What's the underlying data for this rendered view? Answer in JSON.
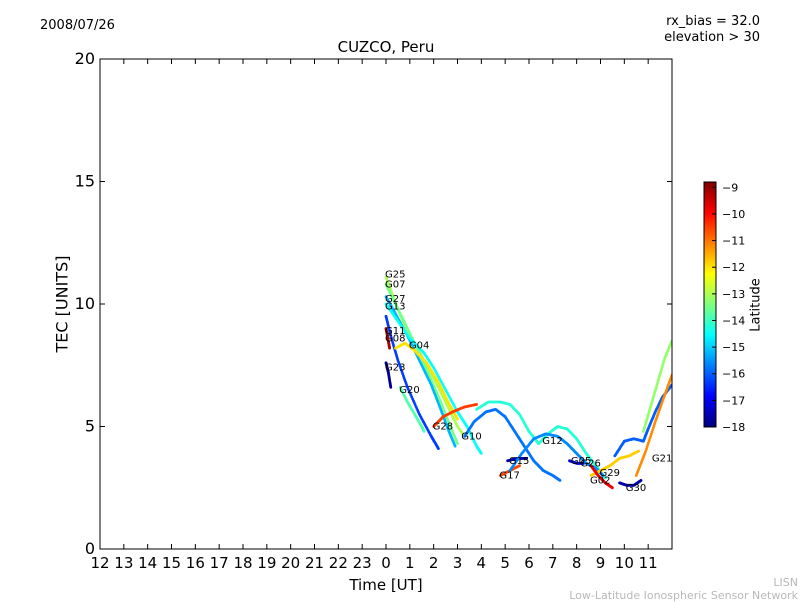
{
  "header": {
    "date": "2008/07/26",
    "rx_bias": "rx_bias = 32.0",
    "elevation": "elevation > 30"
  },
  "footer": {
    "line1": "LISN",
    "line2": "Low-Latitude Ionospheric Sensor Network"
  },
  "chart_data": {
    "type": "scatter",
    "title": "CUZCO, Peru",
    "xlabel": "Time [UT]",
    "ylabel": "TEC [UNITS]",
    "ylim": [
      0,
      20
    ],
    "xlim": [
      -12,
      12
    ],
    "x_tick_labels": [
      "12",
      "13",
      "14",
      "15",
      "16",
      "17",
      "18",
      "19",
      "20",
      "21",
      "22",
      "23",
      "0",
      "1",
      "2",
      "3",
      "4",
      "5",
      "6",
      "7",
      "8",
      "9",
      "10",
      "11"
    ],
    "y_ticks": [
      0,
      5,
      10,
      15,
      20
    ],
    "colorbar": {
      "label": "Latitude",
      "min": -18,
      "max": -8.8,
      "ticks": [
        -9,
        -10,
        -11,
        -12,
        -13,
        -14,
        -15,
        -16,
        -17,
        -18
      ],
      "colors": [
        "#00007f",
        "#0000ff",
        "#007fff",
        "#00ffff",
        "#7fff7f",
        "#ffff00",
        "#ff7f00",
        "#ff0000",
        "#7f0000"
      ]
    },
    "series": [
      {
        "name": "G25",
        "label_x": 0.0,
        "label_y": 11.2,
        "lat": -13.0,
        "points": [
          [
            0.0,
            11.1
          ],
          [
            0.3,
            10.3
          ],
          [
            0.7,
            9.3
          ],
          [
            1.2,
            8.4
          ],
          [
            1.7,
            7.5
          ],
          [
            2.2,
            6.6
          ],
          [
            2.6,
            5.8
          ],
          [
            3.0,
            5.0
          ],
          [
            3.3,
            4.6
          ]
        ]
      },
      {
        "name": "G07",
        "label_x": 0.0,
        "label_y": 10.8,
        "lat": -13.5,
        "points": [
          [
            0.0,
            10.8
          ],
          [
            0.4,
            10.0
          ],
          [
            0.8,
            9.2
          ],
          [
            1.3,
            8.2
          ],
          [
            1.8,
            7.1
          ],
          [
            2.3,
            6.0
          ],
          [
            2.7,
            5.0
          ],
          [
            3.0,
            4.3
          ]
        ]
      },
      {
        "name": "G27",
        "label_x": 0.0,
        "label_y": 10.2,
        "lat": -15.2,
        "points": [
          [
            0.0,
            10.3
          ],
          [
            0.4,
            9.6
          ],
          [
            0.9,
            8.7
          ],
          [
            1.4,
            7.7
          ],
          [
            1.9,
            6.7
          ],
          [
            2.3,
            5.7
          ],
          [
            2.6,
            4.9
          ],
          [
            2.9,
            4.2
          ]
        ]
      },
      {
        "name": "G13",
        "label_x": 0.0,
        "label_y": 9.9,
        "lat": -14.5,
        "points": [
          [
            0.0,
            10.0
          ],
          [
            0.5,
            9.3
          ],
          [
            1.0,
            8.6
          ],
          [
            1.6,
            8.0
          ],
          [
            2.0,
            7.4
          ],
          [
            2.5,
            6.5
          ],
          [
            3.0,
            5.6
          ],
          [
            3.4,
            5.0
          ],
          [
            3.8,
            4.2
          ],
          [
            4.0,
            3.9
          ]
        ]
      },
      {
        "name": "G11",
        "label_x": 0.0,
        "label_y": 8.9,
        "lat": -16.3,
        "points": [
          [
            0.0,
            9.5
          ],
          [
            0.2,
            8.7
          ],
          [
            0.5,
            7.7
          ],
          [
            0.9,
            6.6
          ],
          [
            1.4,
            5.5
          ],
          [
            1.9,
            4.6
          ],
          [
            2.2,
            4.1
          ]
        ]
      },
      {
        "name": "G08",
        "label_x": 0.0,
        "label_y": 8.6,
        "lat": -9.2,
        "points": [
          [
            0.0,
            9.0
          ],
          [
            0.08,
            8.6
          ],
          [
            0.15,
            8.2
          ]
        ]
      },
      {
        "name": "G04",
        "label_x": 1.0,
        "label_y": 8.3,
        "lat": -12.0,
        "points": [
          [
            0.4,
            8.2
          ],
          [
            0.8,
            8.4
          ],
          [
            1.2,
            8.1
          ],
          [
            1.7,
            7.6
          ],
          [
            2.2,
            6.8
          ],
          [
            2.6,
            6.0
          ],
          [
            3.0,
            5.3
          ]
        ]
      },
      {
        "name": "G23",
        "label_x": 0.0,
        "label_y": 7.4,
        "lat": -17.8,
        "points": [
          [
            0.0,
            7.6
          ],
          [
            0.1,
            7.2
          ],
          [
            0.2,
            6.6
          ]
        ]
      },
      {
        "name": "G20",
        "label_x": 0.6,
        "label_y": 6.5,
        "lat": -13.8,
        "points": [
          [
            0.6,
            6.6
          ],
          [
            0.9,
            6.0
          ],
          [
            1.2,
            5.5
          ],
          [
            1.5,
            5.0
          ],
          [
            1.6,
            4.8
          ]
        ]
      },
      {
        "name": "G28",
        "label_x": 2.0,
        "label_y": 5.0,
        "lat": -10.5,
        "points": [
          [
            2.0,
            5.0
          ],
          [
            2.4,
            5.4
          ],
          [
            2.8,
            5.6
          ],
          [
            3.3,
            5.8
          ],
          [
            3.8,
            5.9
          ]
        ]
      },
      {
        "name": "G10",
        "label_x": 3.2,
        "label_y": 4.6,
        "lat": -15.8,
        "points": [
          [
            3.3,
            4.6
          ],
          [
            3.7,
            5.2
          ],
          [
            4.2,
            5.6
          ],
          [
            4.6,
            5.7
          ],
          [
            5.0,
            5.4
          ],
          [
            5.4,
            4.8
          ],
          [
            5.8,
            4.2
          ],
          [
            6.2,
            3.6
          ],
          [
            6.6,
            3.2
          ],
          [
            7.0,
            3.0
          ],
          [
            7.3,
            2.8
          ]
        ]
      },
      {
        "name": "G17",
        "label_x": 4.8,
        "label_y": 3.0,
        "lat": -10.6,
        "points": [
          [
            4.8,
            3.0
          ],
          [
            5.2,
            3.2
          ],
          [
            5.6,
            3.4
          ]
        ]
      },
      {
        "name": "G15",
        "label_x": 5.2,
        "label_y": 3.6,
        "lat": -17.5,
        "points": [
          [
            5.1,
            3.6
          ],
          [
            5.5,
            3.7
          ],
          [
            5.9,
            3.7
          ]
        ]
      },
      {
        "name": "G12",
        "label_x": 6.6,
        "label_y": 4.4,
        "lat": -14.2,
        "points": [
          [
            3.8,
            5.7
          ],
          [
            4.3,
            6.0
          ],
          [
            4.8,
            6.0
          ],
          [
            5.2,
            5.9
          ],
          [
            5.6,
            5.5
          ],
          [
            6.0,
            4.8
          ],
          [
            6.4,
            4.3
          ],
          [
            6.8,
            4.7
          ],
          [
            7.2,
            5.0
          ],
          [
            7.6,
            4.9
          ],
          [
            8.0,
            4.5
          ],
          [
            8.4,
            3.9
          ],
          [
            8.8,
            3.4
          ],
          [
            9.2,
            2.9
          ]
        ]
      },
      {
        "name": "G05",
        "label_x": 7.8,
        "label_y": 3.6,
        "lat": -17.2,
        "points": [
          [
            7.7,
            3.6
          ],
          [
            8.0,
            3.5
          ],
          [
            8.3,
            3.5
          ]
        ]
      },
      {
        "name": "G26",
        "label_x": 8.2,
        "label_y": 3.5,
        "lat": -15.6,
        "points": [
          [
            5.2,
            3.2
          ],
          [
            5.7,
            3.9
          ],
          [
            6.2,
            4.5
          ],
          [
            6.7,
            4.7
          ],
          [
            7.2,
            4.6
          ],
          [
            7.6,
            4.3
          ],
          [
            8.0,
            3.9
          ],
          [
            8.4,
            3.5
          ],
          [
            8.8,
            3.3
          ],
          [
            9.1,
            3.0
          ]
        ]
      },
      {
        "name": "G29",
        "label_x": 9.0,
        "label_y": 3.1,
        "lat": -11.8,
        "points": [
          [
            8.6,
            3.0
          ],
          [
            9.0,
            3.2
          ],
          [
            9.4,
            3.4
          ],
          [
            9.8,
            3.7
          ],
          [
            10.2,
            3.8
          ],
          [
            10.6,
            4.0
          ]
        ]
      },
      {
        "name": "G02",
        "label_x": 8.6,
        "label_y": 2.8,
        "lat": -9.8,
        "points": [
          [
            8.6,
            3.4
          ],
          [
            8.9,
            3.0
          ],
          [
            9.2,
            2.7
          ],
          [
            9.5,
            2.5
          ]
        ]
      },
      {
        "name": "G30",
        "label_x": 10.1,
        "label_y": 2.5,
        "lat": -17.6,
        "points": [
          [
            9.8,
            2.7
          ],
          [
            10.1,
            2.6
          ],
          [
            10.4,
            2.6
          ],
          [
            10.7,
            2.8
          ]
        ]
      },
      {
        "name": "G21",
        "label_x": 11.2,
        "label_y": 3.7,
        "lat": -16.0,
        "points": [
          [
            9.6,
            3.8
          ],
          [
            10.0,
            4.4
          ],
          [
            10.4,
            4.5
          ],
          [
            10.8,
            4.4
          ],
          [
            11.0,
            4.9
          ],
          [
            11.3,
            5.6
          ],
          [
            11.6,
            6.2
          ],
          [
            12.0,
            6.7
          ]
        ]
      },
      {
        "name": "",
        "label_x": null,
        "label_y": null,
        "lat": -13.2,
        "points": [
          [
            10.8,
            4.8
          ],
          [
            11.1,
            5.8
          ],
          [
            11.4,
            6.8
          ],
          [
            11.7,
            7.8
          ],
          [
            12.0,
            8.5
          ]
        ]
      },
      {
        "name": "",
        "label_x": null,
        "label_y": null,
        "lat": -11.2,
        "points": [
          [
            10.5,
            3.0
          ],
          [
            10.9,
            4.0
          ],
          [
            11.3,
            5.2
          ],
          [
            11.7,
            6.3
          ],
          [
            12.0,
            7.1
          ]
        ]
      }
    ]
  }
}
